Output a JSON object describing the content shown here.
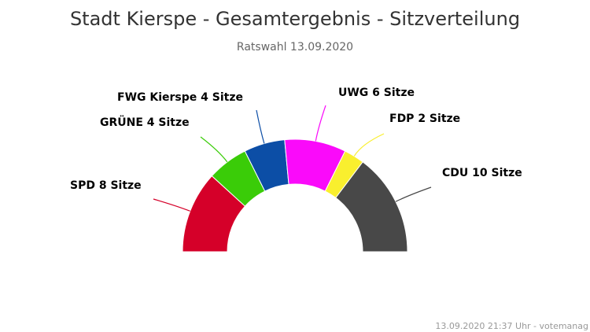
{
  "chart_data": {
    "type": "pie",
    "subtype": "semicircle",
    "title": "Stadt Kierspe - Gesamtergebnis - Sitzverteilung",
    "subtitle": "Ratswahl 13.09.2020",
    "label_suffix": "Sitze",
    "series": [
      {
        "name": "SPD",
        "value": 8,
        "color": "#d50029"
      },
      {
        "name": "GRÜNE",
        "value": 4,
        "color": "#3acc08"
      },
      {
        "name": "FWG Kierspe",
        "value": 4,
        "color": "#0c4ea6"
      },
      {
        "name": "UWG",
        "value": 6,
        "color": "#fa0afa"
      },
      {
        "name": "FDP",
        "value": 2,
        "color": "#f9ef2e"
      },
      {
        "name": "CDU",
        "value": 10,
        "color": "#484848"
      }
    ]
  },
  "credits": "13.09.2020 21:37 Uhr - votemanag"
}
